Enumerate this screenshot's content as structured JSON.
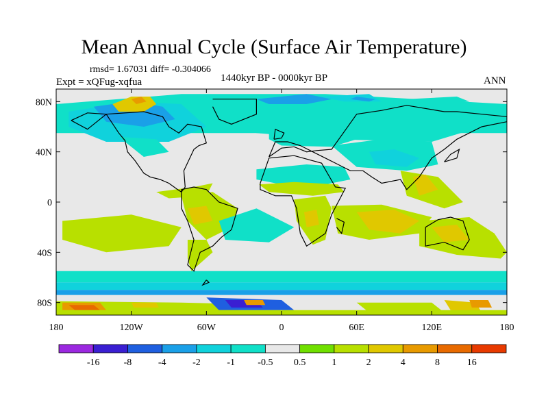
{
  "figure": {
    "title": "Mean Annual Cycle (Surface Air Temperature)",
    "stats": "rmsd= 1.67031 diff= -0.304066",
    "period": "1440kyr BP - 0000kyr BP",
    "experiment": "Expt = xQFug-xqfua",
    "season": "ANN"
  },
  "map": {
    "projection": "cylindrical equidistant",
    "lon_range": [
      -180,
      180
    ],
    "lat_range": [
      -90,
      90
    ],
    "lon_ticks": [
      {
        "value": -180,
        "label": "180"
      },
      {
        "value": -120,
        "label": "120W"
      },
      {
        "value": -60,
        "label": "60W"
      },
      {
        "value": 0,
        "label": "0"
      },
      {
        "value": 60,
        "label": "60E"
      },
      {
        "value": 120,
        "label": "120E"
      },
      {
        "value": 180,
        "label": "180"
      }
    ],
    "lat_ticks": [
      {
        "value": 80,
        "label": "80N"
      },
      {
        "value": 40,
        "label": "40N"
      },
      {
        "value": 0,
        "label": "0"
      },
      {
        "value": -40,
        "label": "40S"
      },
      {
        "value": -80,
        "label": "80S"
      }
    ],
    "coastline_color": "#000000"
  },
  "colorbar": {
    "labels": [
      "-16",
      "-8",
      "-4",
      "-2",
      "-1",
      "-0.5",
      "0.5",
      "1",
      "2",
      "4",
      "8",
      "16"
    ],
    "colors": [
      "#9b28e0",
      "#3a1fd2",
      "#1f5fe0",
      "#1aa0e8",
      "#10d2dc",
      "#10e0c8",
      "#e8e8e8",
      "#70e000",
      "#b8e000",
      "#e0c800",
      "#e89a00",
      "#e86a00",
      "#e83a00"
    ]
  },
  "regions": [
    {
      "lon": [
        -180,
        -80,
        35,
        180,
        180,
        -180
      ],
      "lat": [
        78,
        86,
        86,
        78,
        55,
        55
      ],
      "class": -1
    },
    {
      "lon": [
        -40,
        10,
        60,
        130,
        160,
        120,
        40,
        -20
      ],
      "lat": [
        72,
        82,
        80,
        75,
        60,
        48,
        50,
        55
      ],
      "class": -1
    },
    {
      "lon": [
        -170,
        -120,
        -80,
        -60,
        -90,
        -140,
        -170
      ],
      "lat": [
        72,
        80,
        78,
        60,
        48,
        48,
        60
      ],
      "class": -2
    },
    {
      "lon": [
        -150,
        -120,
        -95,
        -85,
        -110,
        -140
      ],
      "lat": [
        76,
        80,
        76,
        66,
        60,
        64
      ],
      "class": -3
    },
    {
      "lon": [
        -125,
        -105,
        -95,
        -110,
        -125
      ],
      "lat": [
        70,
        73,
        66,
        62,
        64
      ],
      "class": -4
    },
    {
      "lon": [
        -135,
        -120,
        -105,
        -100,
        -110,
        -130
      ],
      "lat": [
        78,
        84,
        84,
        78,
        72,
        72
      ],
      "class": 2
    },
    {
      "lon": [
        -120,
        -112,
        -108,
        -116
      ],
      "lat": [
        82,
        84,
        80,
        78
      ],
      "class": 4
    },
    {
      "lon": [
        -130,
        -100,
        -90,
        -110
      ],
      "lat": [
        52,
        50,
        40,
        36
      ],
      "class": -1
    },
    {
      "lon": [
        -20,
        20,
        40,
        20,
        -10
      ],
      "lat": [
        82,
        86,
        82,
        78,
        78
      ],
      "class": -3
    },
    {
      "lon": [
        30,
        70,
        80,
        50
      ],
      "lat": [
        84,
        86,
        80,
        80
      ],
      "class": -2
    },
    {
      "lon": [
        55,
        60,
        75,
        70
      ],
      "lat": [
        82,
        84,
        82,
        80
      ],
      "class": -4
    },
    {
      "lon": [
        100,
        140,
        150,
        110
      ],
      "lat": [
        82,
        84,
        80,
        78
      ],
      "class": -1
    },
    {
      "lon": [
        -10,
        40,
        60,
        40,
        0,
        -10
      ],
      "lat": [
        55,
        58,
        50,
        44,
        45,
        50
      ],
      "class": -1
    },
    {
      "lon": [
        40,
        80,
        120,
        125,
        100,
        60
      ],
      "lat": [
        45,
        50,
        48,
        30,
        25,
        28
      ],
      "class": -1
    },
    {
      "lon": [
        70,
        90,
        110,
        100,
        75
      ],
      "lat": [
        40,
        42,
        35,
        28,
        30
      ],
      "class": -2
    },
    {
      "lon": [
        -20,
        20,
        50,
        55,
        35,
        0,
        -20
      ],
      "lat": [
        26,
        30,
        28,
        18,
        14,
        14,
        18
      ],
      "class": -1
    },
    {
      "lon": [
        -18,
        10,
        45,
        50,
        25,
        -10
      ],
      "lat": [
        14,
        16,
        14,
        8,
        5,
        8
      ],
      "class": 1
    },
    {
      "lon": [
        10,
        35,
        40,
        35,
        25,
        12
      ],
      "lat": [
        2,
        5,
        -5,
        -30,
        -34,
        -15
      ],
      "class": 1
    },
    {
      "lon": [
        18,
        28,
        30,
        20
      ],
      "lat": [
        -8,
        -6,
        -18,
        -20
      ],
      "class": 2
    },
    {
      "lon": [
        -80,
        -55,
        -35,
        -40,
        -60,
        -75
      ],
      "lat": [
        5,
        8,
        -5,
        -20,
        -30,
        -15
      ],
      "class": 1
    },
    {
      "lon": [
        -75,
        -60,
        -55,
        -70
      ],
      "lat": [
        -5,
        -3,
        -15,
        -18
      ],
      "class": 2
    },
    {
      "lon": [
        -75,
        -60,
        -55,
        -72,
        -75
      ],
      "lat": [
        -30,
        -30,
        -40,
        -55,
        -45
      ],
      "class": 1
    },
    {
      "lon": [
        -50,
        -20,
        10,
        -10,
        -45
      ],
      "lat": [
        -15,
        -5,
        -20,
        -32,
        -30
      ],
      "class": -1
    },
    {
      "lon": [
        -175,
        -120,
        -80,
        -90,
        -140,
        -175
      ],
      "lat": [
        -15,
        -10,
        -20,
        -35,
        -40,
        -30
      ],
      "class": 1
    },
    {
      "lon": [
        -100,
        -70,
        -55,
        -60,
        -90
      ],
      "lat": [
        8,
        12,
        15,
        5,
        3
      ],
      "class": 1
    },
    {
      "lon": [
        40,
        80,
        120,
        110,
        70,
        45
      ],
      "lat": [
        -3,
        -2,
        -12,
        -25,
        -30,
        -25
      ],
      "class": 1
    },
    {
      "lon": [
        60,
        90,
        110,
        95,
        70
      ],
      "lat": [
        -8,
        -6,
        -15,
        -25,
        -22
      ],
      "class": 2
    },
    {
      "lon": [
        110,
        150,
        170,
        180,
        175,
        140,
        110
      ],
      "lat": [
        -15,
        -12,
        -25,
        -40,
        -45,
        -42,
        -35
      ],
      "class": 1
    },
    {
      "lon": [
        120,
        140,
        150,
        130
      ],
      "lat": [
        -20,
        -18,
        -30,
        -32
      ],
      "class": 2
    },
    {
      "lon": [
        95,
        125,
        145,
        130,
        100
      ],
      "lat": [
        25,
        20,
        0,
        -5,
        5
      ],
      "class": 1
    },
    {
      "lon": [
        105,
        115,
        125,
        110
      ],
      "lat": [
        20,
        22,
        10,
        5
      ],
      "class": 2
    },
    {
      "lon": [
        -180,
        180,
        180,
        -180
      ],
      "lat": [
        -55,
        -55,
        -64,
        -64
      ],
      "class": -1
    },
    {
      "lon": [
        -180,
        180,
        180,
        -180
      ],
      "lat": [
        -64,
        -64,
        -70,
        -70
      ],
      "class": -2
    },
    {
      "lon": [
        -180,
        180,
        180,
        -180
      ],
      "lat": [
        -70,
        -70,
        -74,
        -74
      ],
      "class": -4
    },
    {
      "lon": [
        -180,
        180,
        180,
        -180
      ],
      "lat": [
        -74,
        -74,
        -79,
        -79
      ],
      "class": -0.5
    },
    {
      "lon": [
        -180,
        -80,
        -40,
        -30,
        -90,
        -180
      ],
      "lat": [
        -79,
        -80,
        -81,
        -90,
        -90,
        -90
      ],
      "class": 1
    },
    {
      "lon": [
        -60,
        0,
        10,
        -50
      ],
      "lat": [
        -76,
        -78,
        -86,
        -86
      ],
      "class": -8
    },
    {
      "lon": [
        -45,
        -20,
        -15,
        -40
      ],
      "lat": [
        -78,
        -78,
        -84,
        -84
      ],
      "class": -16
    },
    {
      "lon": [
        -175,
        -145,
        -140,
        -175
      ],
      "lat": [
        -80,
        -80,
        -86,
        -86
      ],
      "class": 4
    },
    {
      "lon": [
        -170,
        -150,
        -145,
        -165
      ],
      "lat": [
        -82,
        -82,
        -86,
        -86
      ],
      "class": 8
    },
    {
      "lon": [
        -120,
        -100,
        -98,
        -118
      ],
      "lat": [
        -80,
        -80,
        -84,
        -84
      ],
      "class": 2
    },
    {
      "lon": [
        -30,
        -15,
        -13,
        -28
      ],
      "lat": [
        -78,
        -78,
        -82,
        -82
      ],
      "class": 4
    },
    {
      "lon": [
        60,
        120,
        130,
        70
      ],
      "lat": [
        -80,
        -80,
        -88,
        -88
      ],
      "class": 1
    },
    {
      "lon": [
        130,
        155,
        160,
        135
      ],
      "lat": [
        -78,
        -80,
        -88,
        -86
      ],
      "class": 2
    },
    {
      "lon": [
        150,
        165,
        168,
        152
      ],
      "lat": [
        -78,
        -78,
        -84,
        -84
      ],
      "class": 4
    },
    {
      "lon": [
        -180,
        180,
        180,
        -180
      ],
      "lat": [
        -86,
        -86,
        -90,
        -90
      ],
      "class": 1
    }
  ],
  "coastlines": [
    {
      "lon": [
        -168,
        -155,
        -140,
        -130,
        -125,
        -123,
        -117,
        -110,
        -105,
        -97,
        -90,
        -83,
        -80,
        -77,
        -78,
        -70,
        -66,
        -60,
        -64,
        -75,
        -82,
        -90,
        -95,
        -110,
        -140,
        -155,
        -168
      ],
      "lat": [
        65,
        71,
        70,
        55,
        49,
        40,
        33,
        23,
        20,
        18,
        15,
        10,
        8,
        12,
        25,
        42,
        45,
        47,
        60,
        62,
        55,
        60,
        68,
        72,
        70,
        58,
        65
      ]
    },
    {
      "lon": [
        -55,
        -20,
        -20,
        -40,
        -50,
        -55
      ],
      "lat": [
        82,
        82,
        70,
        62,
        66,
        76
      ]
    },
    {
      "lon": [
        -80,
        -70,
        -60,
        -50,
        -35,
        -40,
        -48,
        -55,
        -65,
        -70,
        -75,
        -70,
        -75,
        -80,
        -80
      ],
      "lat": [
        10,
        12,
        10,
        0,
        -5,
        -22,
        -28,
        -35,
        -40,
        -55,
        -50,
        -30,
        -15,
        -5,
        10
      ]
    },
    {
      "lon": [
        -17,
        -10,
        10,
        32,
        43,
        51,
        40,
        35,
        20,
        15,
        12,
        8,
        -5,
        -17,
        -17
      ],
      "lat": [
        15,
        35,
        37,
        31,
        12,
        11,
        -10,
        -25,
        -35,
        -25,
        -5,
        5,
        5,
        10,
        15
      ]
    },
    {
      "lon": [
        -10,
        0,
        10,
        20,
        28,
        40,
        60,
        80,
        100,
        130,
        140,
        160,
        180,
        180,
        160,
        140,
        130,
        120,
        110,
        100,
        95,
        80,
        72,
        65,
        55,
        45,
        35,
        25,
        15,
        5,
        -5,
        -10
      ],
      "lat": [
        36,
        43,
        44,
        40,
        41,
        42,
        70,
        73,
        77,
        72,
        72,
        70,
        68,
        64,
        60,
        50,
        42,
        35,
        20,
        10,
        18,
        15,
        20,
        25,
        25,
        30,
        35,
        40,
        45,
        48,
        48,
        36
      ]
    },
    {
      "lon": [
        115,
        125,
        135,
        145,
        150,
        145,
        130,
        115,
        115
      ],
      "lat": [
        -20,
        -14,
        -12,
        -15,
        -30,
        -38,
        -32,
        -35,
        -20
      ]
    },
    {
      "lon": [
        44,
        50,
        48,
        44
      ],
      "lat": [
        -13,
        -16,
        -25,
        -20
      ]
    },
    {
      "lon": [
        -6,
        0,
        2,
        -5,
        -6
      ],
      "lat": [
        50,
        51,
        55,
        58,
        50
      ]
    },
    {
      "lon": [
        130,
        140,
        142,
        135,
        130
      ],
      "lat": [
        32,
        35,
        42,
        38,
        32
      ]
    },
    {
      "lon": [
        -60,
        -58,
        -63,
        -60
      ],
      "lat": [
        -62,
        -64,
        -66,
        -62
      ]
    }
  ]
}
